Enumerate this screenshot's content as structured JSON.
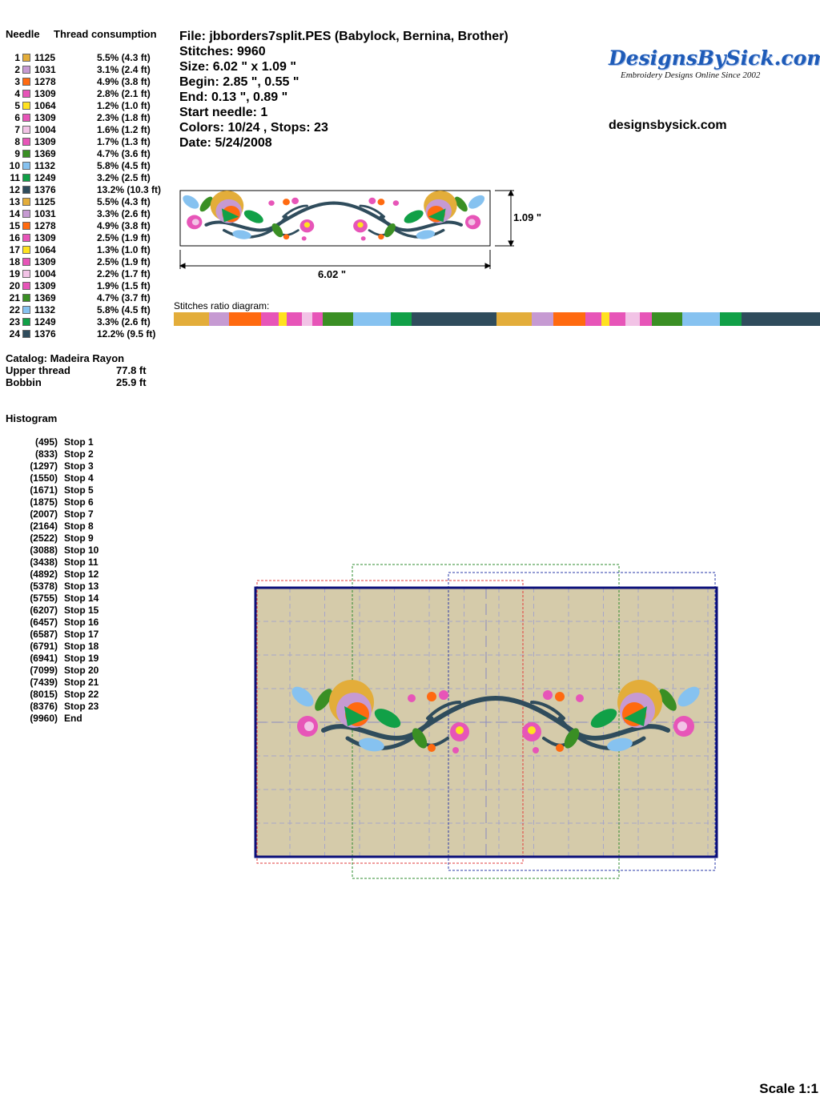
{
  "threads": {
    "header_needle": "Needle",
    "header_consumption": "Thread consumption",
    "rows": [
      {
        "n": "1",
        "code": "1125",
        "color": "#E3AD3A",
        "cons": "5.5% (4.3 ft)"
      },
      {
        "n": "2",
        "code": "1031",
        "color": "#C69AD2",
        "cons": "3.1% (2.4 ft)"
      },
      {
        "n": "3",
        "code": "1278",
        "color": "#FF6A10",
        "cons": "4.9% (3.8 ft)"
      },
      {
        "n": "4",
        "code": "1309",
        "color": "#E755B8",
        "cons": "2.8% (2.1 ft)"
      },
      {
        "n": "5",
        "code": "1064",
        "color": "#FFE21F",
        "cons": "1.2% (1.0 ft)"
      },
      {
        "n": "6",
        "code": "1309",
        "color": "#E755B8",
        "cons": "2.3% (1.8 ft)"
      },
      {
        "n": "7",
        "code": "1004",
        "color": "#F2C3E6",
        "cons": "1.6% (1.2 ft)"
      },
      {
        "n": "8",
        "code": "1309",
        "color": "#E755B8",
        "cons": "1.7% (1.3 ft)"
      },
      {
        "n": "9",
        "code": "1369",
        "color": "#3A8F24",
        "cons": "4.7% (3.6 ft)"
      },
      {
        "n": "10",
        "code": "1132",
        "color": "#86C2F0",
        "cons": "5.8% (4.5 ft)"
      },
      {
        "n": "11",
        "code": "1249",
        "color": "#11A047",
        "cons": "3.2% (2.5 ft)"
      },
      {
        "n": "12",
        "code": "1376",
        "color": "#2F4C5C",
        "cons": "13.2% (10.3 ft)"
      },
      {
        "n": "13",
        "code": "1125",
        "color": "#E3AD3A",
        "cons": "5.5% (4.3 ft)"
      },
      {
        "n": "14",
        "code": "1031",
        "color": "#C69AD2",
        "cons": "3.3% (2.6 ft)"
      },
      {
        "n": "15",
        "code": "1278",
        "color": "#FF6A10",
        "cons": "4.9% (3.8 ft)"
      },
      {
        "n": "16",
        "code": "1309",
        "color": "#E755B8",
        "cons": "2.5% (1.9 ft)"
      },
      {
        "n": "17",
        "code": "1064",
        "color": "#FFE21F",
        "cons": "1.3% (1.0 ft)"
      },
      {
        "n": "18",
        "code": "1309",
        "color": "#E755B8",
        "cons": "2.5% (1.9 ft)"
      },
      {
        "n": "19",
        "code": "1004",
        "color": "#F2C3E6",
        "cons": "2.2% (1.7 ft)"
      },
      {
        "n": "20",
        "code": "1309",
        "color": "#E755B8",
        "cons": "1.9% (1.5 ft)"
      },
      {
        "n": "21",
        "code": "1369",
        "color": "#3A8F24",
        "cons": "4.7% (3.7 ft)"
      },
      {
        "n": "22",
        "code": "1132",
        "color": "#86C2F0",
        "cons": "5.8% (4.5 ft)"
      },
      {
        "n": "23",
        "code": "1249",
        "color": "#11A047",
        "cons": "3.3% (2.6 ft)"
      },
      {
        "n": "24",
        "code": "1376",
        "color": "#2F4C5C",
        "cons": "12.2% (9.5 ft)"
      }
    ]
  },
  "catalog": {
    "catalog_line": "Catalog: Madeira Rayon",
    "upper_label": "Upper thread",
    "upper_value": "77.8 ft",
    "bobbin_label": "Bobbin",
    "bobbin_value": "25.9 ft"
  },
  "histogram": {
    "title": "Histogram",
    "rows": [
      {
        "count": "(495)",
        "label": "Stop 1"
      },
      {
        "count": "(833)",
        "label": "Stop 2"
      },
      {
        "count": "(1297)",
        "label": "Stop 3"
      },
      {
        "count": "(1550)",
        "label": "Stop 4"
      },
      {
        "count": "(1671)",
        "label": "Stop 5"
      },
      {
        "count": "(1875)",
        "label": "Stop 6"
      },
      {
        "count": "(2007)",
        "label": "Stop 7"
      },
      {
        "count": "(2164)",
        "label": "Stop 8"
      },
      {
        "count": "(2522)",
        "label": "Stop 9"
      },
      {
        "count": "(3088)",
        "label": "Stop 10"
      },
      {
        "count": "(3438)",
        "label": "Stop 11"
      },
      {
        "count": "(4892)",
        "label": "Stop 12"
      },
      {
        "count": "(5378)",
        "label": "Stop 13"
      },
      {
        "count": "(5755)",
        "label": "Stop 14"
      },
      {
        "count": "(6207)",
        "label": "Stop 15"
      },
      {
        "count": "(6457)",
        "label": "Stop 16"
      },
      {
        "count": "(6587)",
        "label": "Stop 17"
      },
      {
        "count": "(6791)",
        "label": "Stop 18"
      },
      {
        "count": "(6941)",
        "label": "Stop 19"
      },
      {
        "count": "(7099)",
        "label": "Stop 20"
      },
      {
        "count": "(7439)",
        "label": "Stop 21"
      },
      {
        "count": "(8015)",
        "label": "Stop 22"
      },
      {
        "count": "(8376)",
        "label": "Stop 23"
      },
      {
        "count": "(9960)",
        "label": "End"
      }
    ]
  },
  "design_info": {
    "file": "File: jbborders7split.PES  (Babylock, Bernina, Brother)",
    "stitches": "Stitches: 9960",
    "size": "Size: 6.02 \" x 1.09 \"",
    "begin": "Begin: 2.85 \", 0.55 \"",
    "end": "End: 0.13 \", 0.89 \"",
    "start_needle": "Start needle: 1",
    "colors": "Colors: 10/24 , Stops: 23",
    "date": "Date: 5/24/2008"
  },
  "brand": {
    "logo_text": "DesignsBySick.com",
    "tagline": "Embroidery Designs Online Since 2002",
    "site": "designsbysick.com",
    "logo_color": "#1E5BB8"
  },
  "preview": {
    "height_label": "1.09 \"",
    "width_label": "6.02 \""
  },
  "ratio": {
    "label": "Stitches ratio diagram:"
  },
  "hoop": {
    "fabric_color": "#D5CBAA",
    "frame_color": "#0A0F7A"
  },
  "footer": {
    "scale": "Scale 1:1"
  }
}
